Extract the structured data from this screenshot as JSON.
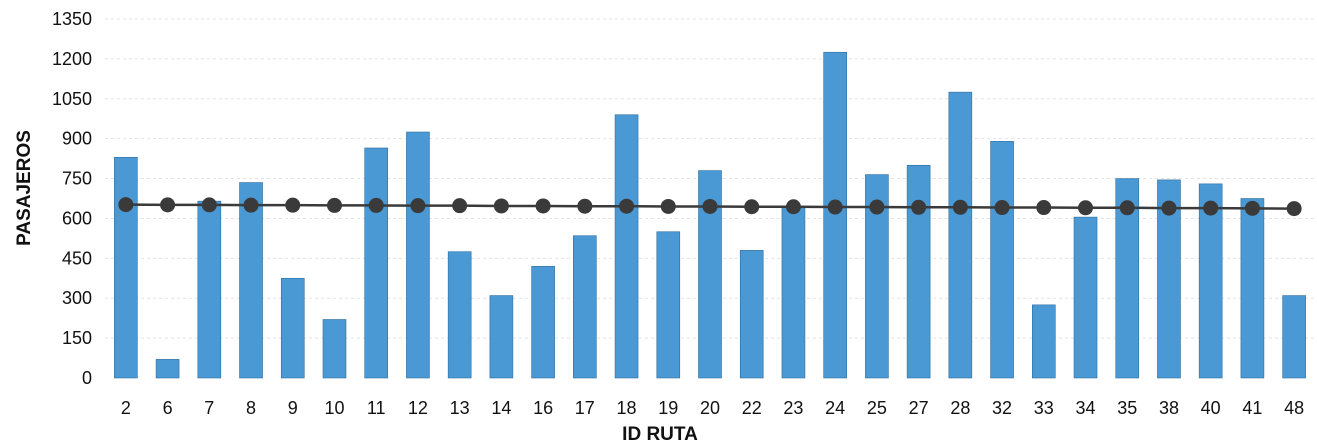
{
  "chart_data": {
    "type": "bar",
    "title": "",
    "xlabel": "ID RUTA",
    "ylabel": "PASAJEROS",
    "ylim": [
      0,
      1350
    ],
    "yticks": [
      0,
      150,
      300,
      450,
      600,
      750,
      900,
      1050,
      1200,
      1350
    ],
    "grid": true,
    "legend": "none",
    "categories": [
      "2",
      "6",
      "7",
      "8",
      "9",
      "10",
      "11",
      "12",
      "13",
      "14",
      "16",
      "17",
      "18",
      "19",
      "20",
      "22",
      "23",
      "24",
      "25",
      "27",
      "28",
      "32",
      "33",
      "34",
      "35",
      "38",
      "40",
      "41",
      "48"
    ],
    "series": [
      {
        "type": "bar",
        "color": "#4a98d4",
        "values": [
          830,
          70,
          665,
          735,
          375,
          220,
          865,
          925,
          475,
          310,
          420,
          535,
          990,
          550,
          780,
          480,
          645,
          1225,
          765,
          800,
          1075,
          890,
          275,
          605,
          750,
          745,
          730,
          675,
          310
        ]
      },
      {
        "type": "line",
        "color": "#3a3a3a",
        "values": [
          652,
          651,
          651,
          650,
          650,
          649,
          649,
          648,
          648,
          647,
          647,
          646,
          646,
          645,
          645,
          644,
          644,
          643,
          643,
          642,
          642,
          641,
          641,
          640,
          640,
          639,
          639,
          638,
          637
        ]
      }
    ]
  }
}
